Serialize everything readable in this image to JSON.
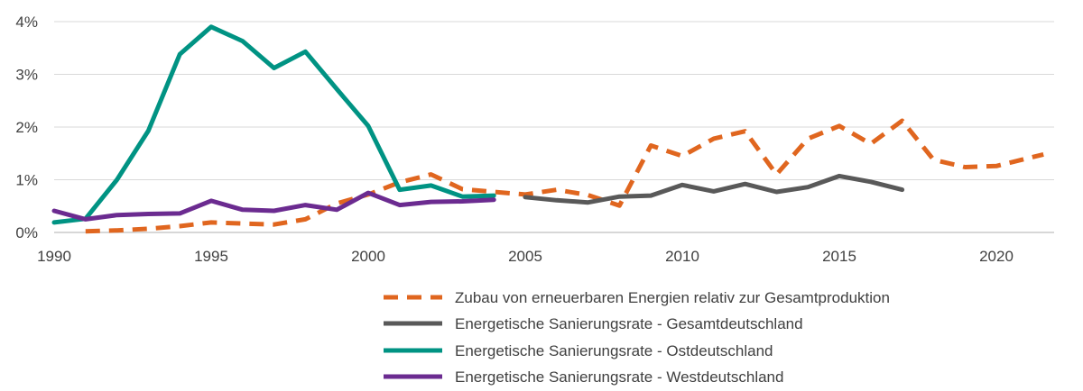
{
  "chart_data": {
    "type": "line",
    "title": "",
    "xlabel": "",
    "ylabel": "",
    "xlim": [
      1990,
      2021.5
    ],
    "ylim": [
      0,
      4
    ],
    "x_ticks": [
      1990,
      1995,
      2000,
      2005,
      2010,
      2015,
      2020
    ],
    "x_tick_labels": [
      "1990",
      "1995",
      "2000",
      "2005",
      "2010",
      "2015",
      "2020"
    ],
    "y_ticks": [
      0,
      1,
      2,
      3,
      4
    ],
    "y_tick_labels": [
      "0%",
      "1%",
      "2%",
      "3%",
      "4%"
    ],
    "grid": "horizontal",
    "legend_position": "bottom",
    "series": [
      {
        "name": "Zubau von erneuerbaren Energien relativ zur Gesamtproduktion",
        "color": "#E0661F",
        "dash": "dashed",
        "x": [
          1991,
          1992,
          1993,
          1994,
          1995,
          1996,
          1997,
          1998,
          1999,
          2000,
          2001,
          2002,
          2003,
          2004,
          2005,
          2006,
          2007,
          2008,
          2009,
          2010,
          2011,
          2012,
          2013,
          2014,
          2015,
          2016,
          2017,
          2018,
          2019,
          2020,
          2021.5
        ],
        "values": [
          0.02,
          0.04,
          0.07,
          0.12,
          0.19,
          0.17,
          0.15,
          0.25,
          0.55,
          0.72,
          0.95,
          1.1,
          0.82,
          0.77,
          0.72,
          0.81,
          0.71,
          0.51,
          1.65,
          1.45,
          1.78,
          1.92,
          1.1,
          1.78,
          2.02,
          1.68,
          2.12,
          1.38,
          1.24,
          1.26,
          1.48
        ]
      },
      {
        "name": "Energetische Sanierungsrate - Gesamtdeutschland",
        "color": "#595959",
        "dash": "solid",
        "x": [
          2005,
          2006,
          2007,
          2008,
          2009,
          2010,
          2011,
          2012,
          2013,
          2014,
          2015,
          2016,
          2017
        ],
        "values": [
          0.67,
          0.61,
          0.57,
          0.68,
          0.7,
          0.9,
          0.78,
          0.92,
          0.77,
          0.86,
          1.07,
          0.96,
          0.81
        ]
      },
      {
        "name": "Energetische Sanierungsrate - Ostdeutschland",
        "color": "#009383",
        "dash": "solid",
        "x": [
          1990,
          1991,
          1992,
          1993,
          1994,
          1995,
          1996,
          1997,
          1998,
          1999,
          2000,
          2001,
          2002,
          2003,
          2004
        ],
        "values": [
          0.19,
          0.26,
          1.0,
          1.93,
          3.38,
          3.9,
          3.63,
          3.12,
          3.43,
          2.72,
          2.02,
          0.81,
          0.89,
          0.68,
          0.7
        ]
      },
      {
        "name": "Energetische Sanierungsrate - Westdeutschland",
        "color": "#6B2B90",
        "dash": "solid",
        "x": [
          1990,
          1991,
          1992,
          1993,
          1994,
          1995,
          1996,
          1997,
          1998,
          1999,
          2000,
          2001,
          2002,
          2003,
          2004
        ],
        "values": [
          0.41,
          0.25,
          0.33,
          0.35,
          0.36,
          0.6,
          0.43,
          0.41,
          0.52,
          0.43,
          0.75,
          0.52,
          0.58,
          0.59,
          0.62
        ]
      }
    ]
  },
  "legend": {
    "items": [
      "Zubau von erneuerbaren Energien relativ zur Gesamtproduktion",
      "Energetische Sanierungsrate - Gesamtdeutschland",
      "Energetische Sanierungsrate - Ostdeutschland",
      "Energetische Sanierungsrate - Westdeutschland"
    ]
  }
}
